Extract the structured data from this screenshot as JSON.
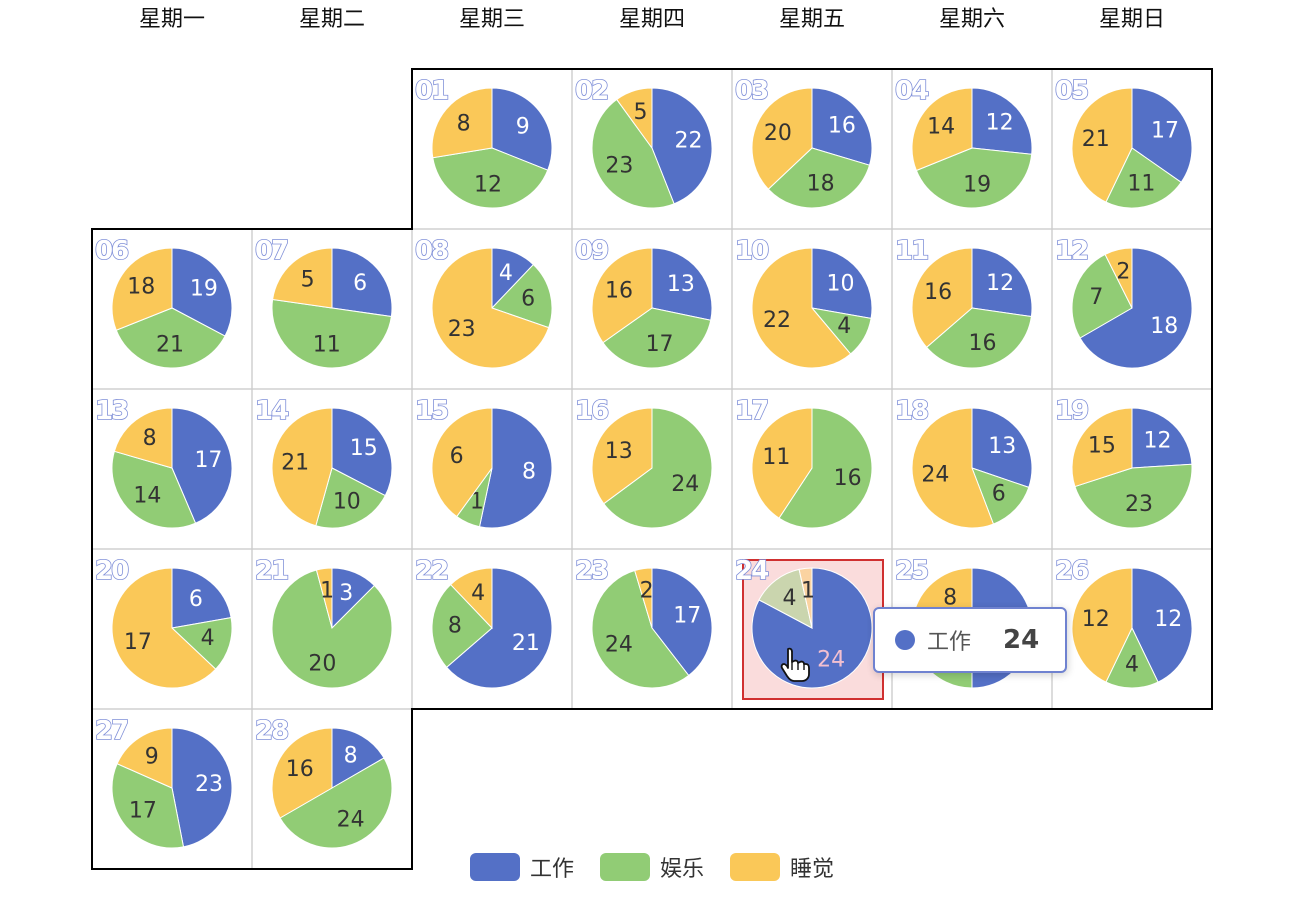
{
  "chart_data": {
    "type": "pie",
    "layout": "calendar",
    "weekdays": [
      "星期一",
      "星期二",
      "星期三",
      "星期四",
      "星期五",
      "星期六",
      "星期日"
    ],
    "first_day_weekday_index": 2,
    "series_names": [
      "工作",
      "娱乐",
      "睡觉"
    ],
    "colors": [
      "#5470c6",
      "#91cc75",
      "#fac858"
    ],
    "days": [
      {
        "day": "01",
        "values": [
          9,
          12,
          8
        ]
      },
      {
        "day": "02",
        "values": [
          22,
          23,
          5
        ]
      },
      {
        "day": "03",
        "values": [
          16,
          18,
          20
        ]
      },
      {
        "day": "04",
        "values": [
          12,
          19,
          14
        ]
      },
      {
        "day": "05",
        "values": [
          17,
          11,
          21
        ]
      },
      {
        "day": "06",
        "values": [
          19,
          21,
          18
        ]
      },
      {
        "day": "07",
        "values": [
          6,
          11,
          5
        ]
      },
      {
        "day": "08",
        "values": [
          4,
          6,
          23
        ]
      },
      {
        "day": "09",
        "values": [
          13,
          17,
          16
        ]
      },
      {
        "day": "10",
        "values": [
          10,
          4,
          22
        ]
      },
      {
        "day": "11",
        "values": [
          12,
          16,
          16
        ]
      },
      {
        "day": "12",
        "values": [
          18,
          7,
          2
        ]
      },
      {
        "day": "13",
        "values": [
          17,
          14,
          8
        ]
      },
      {
        "day": "14",
        "values": [
          15,
          10,
          21
        ]
      },
      {
        "day": "15",
        "values": [
          8,
          1,
          6
        ]
      },
      {
        "day": "16",
        "values": [
          0,
          24,
          13
        ]
      },
      {
        "day": "17",
        "values": [
          0,
          16,
          11
        ]
      },
      {
        "day": "18",
        "values": [
          13,
          6,
          24
        ]
      },
      {
        "day": "19",
        "values": [
          12,
          23,
          15
        ]
      },
      {
        "day": "20",
        "values": [
          6,
          4,
          17
        ]
      },
      {
        "day": "21",
        "values": [
          3,
          20,
          1
        ]
      },
      {
        "day": "22",
        "values": [
          21,
          8,
          4
        ]
      },
      {
        "day": "23",
        "values": [
          17,
          24,
          2
        ]
      },
      {
        "day": "24",
        "values": [
          24,
          4,
          1
        ]
      },
      {
        "day": "25",
        "values": [
          20,
          12,
          8
        ]
      },
      {
        "day": "26",
        "values": [
          12,
          4,
          12
        ]
      },
      {
        "day": "27",
        "values": [
          23,
          17,
          9
        ]
      },
      {
        "day": "28",
        "values": [
          8,
          24,
          16
        ]
      }
    ],
    "highlighted_day": "24",
    "legend": {
      "placement": "bottom-center",
      "items": [
        "工作",
        "娱乐",
        "睡觉"
      ]
    }
  },
  "tooltip": {
    "series_name": "工作",
    "value": "24"
  },
  "legend": {
    "items": [
      {
        "label": "工作",
        "color": "#5470c6"
      },
      {
        "label": "娱乐",
        "color": "#91cc75"
      },
      {
        "label": "睡觉",
        "color": "#fac858"
      }
    ]
  }
}
